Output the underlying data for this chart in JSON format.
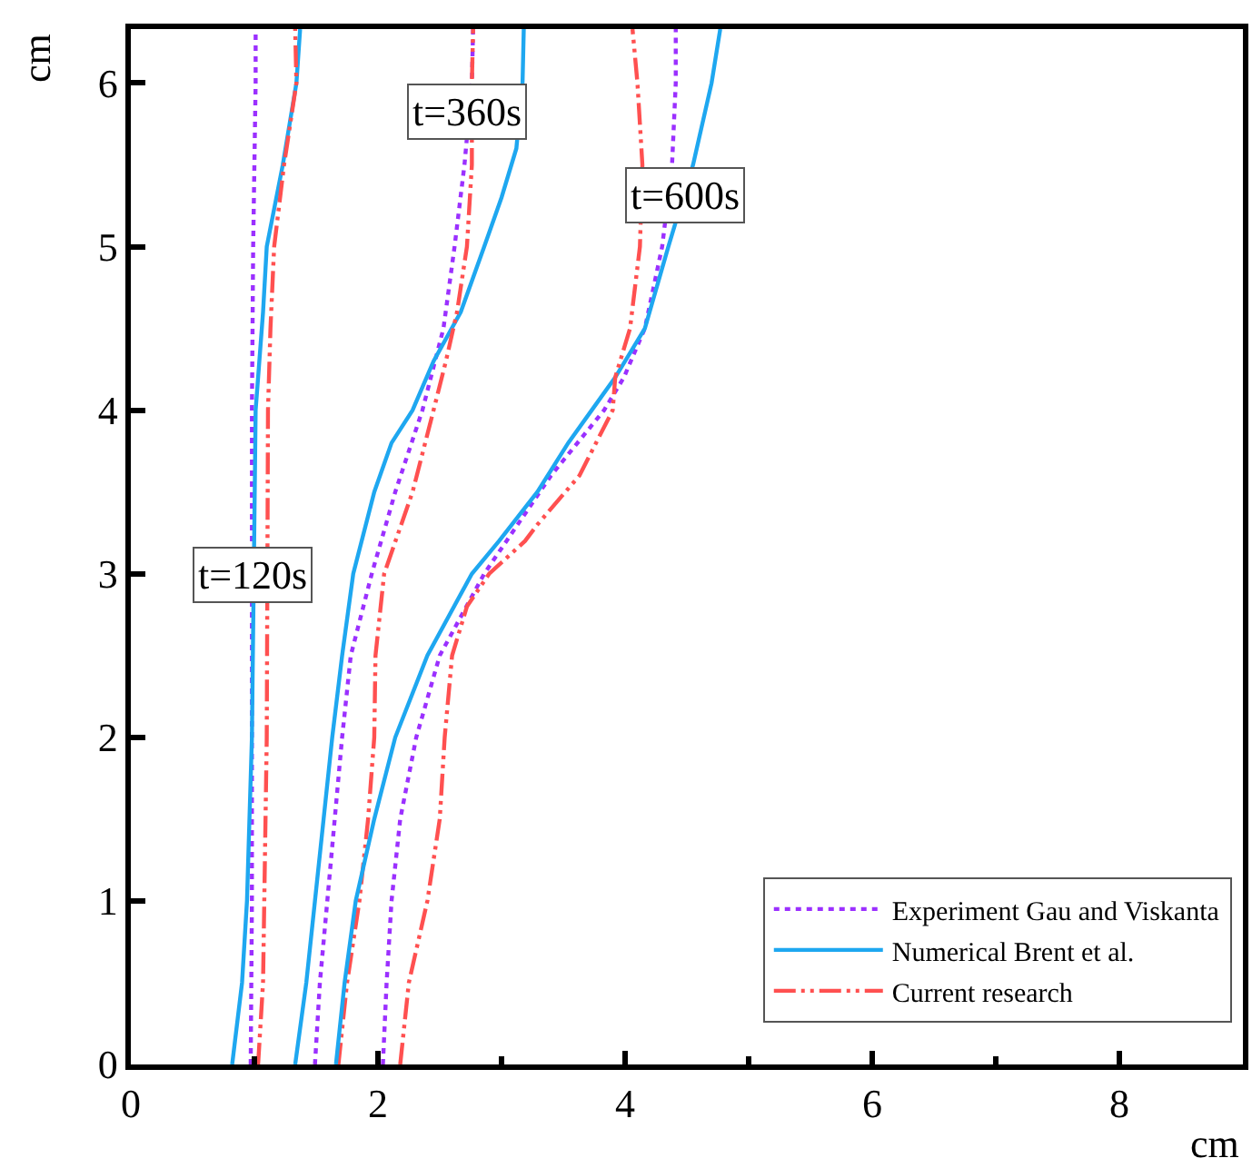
{
  "chart_data": {
    "type": "line",
    "xlabel": "cm",
    "ylabel": "cm",
    "xlim": [
      0,
      9
    ],
    "ylim": [
      0,
      6.33
    ],
    "xticks": [
      0,
      {
        "value": 1,
        "label": null
      },
      2,
      {
        "value": 3,
        "label": null
      },
      4,
      {
        "value": 5,
        "label": null
      },
      6,
      {
        "value": 7,
        "label": null
      },
      8
    ],
    "yticks": [
      0,
      1,
      2,
      3,
      4,
      5,
      6
    ],
    "legend": "bottom right",
    "marker": "none",
    "annotations": [
      {
        "text": "t=120s",
        "x": 0.98,
        "y": 2.99
      },
      {
        "text": "t=360s",
        "x": 2.72,
        "y": 5.82
      },
      {
        "text": "t=600s",
        "x": 4.49,
        "y": 5.31
      }
    ],
    "series": [
      {
        "name": "Experiment Gau and Viskanta",
        "color": "#9b30ff",
        "line_style": "dotted",
        "x": [
          0.97,
          0.98,
          0.98,
          0.98,
          0.99,
          1.0,
          1.01,
          1.01
        ],
        "values": [
          0,
          1,
          2,
          4,
          5,
          5.5,
          6,
          6.33
        ]
      },
      {
        "name": "Numerical Brent et al.",
        "color": "#1ea7f0",
        "line_style": "solid",
        "x": [
          0.82,
          0.9,
          0.94,
          0.98,
          1.01,
          1.07,
          1.1,
          1.23,
          1.34,
          1.37
        ],
        "values": [
          0,
          0.5,
          1,
          2,
          4,
          4.6,
          5,
          5.5,
          6,
          6.33
        ]
      },
      {
        "name": "Current research",
        "color": "#ff5050",
        "line_style": "dashed",
        "x": [
          1.03,
          1.07,
          1.08,
          1.1,
          1.11,
          1.13,
          1.16,
          1.24,
          1.34,
          1.33
        ],
        "values": [
          0,
          0.5,
          1,
          2,
          4,
          4.5,
          5,
          5.5,
          6,
          6.33
        ]
      },
      {
        "color": "#9b30ff",
        "line_style": "dotted",
        "x": [
          1.49,
          1.53,
          1.59,
          1.71,
          1.78,
          1.95,
          2.14,
          2.36,
          2.53,
          2.62,
          2.7,
          2.76,
          2.77
        ],
        "values": [
          0,
          0.5,
          1,
          2,
          2.5,
          3,
          3.5,
          4,
          4.5,
          5,
          5.5,
          6,
          6.33
        ]
      },
      {
        "color": "#1ea7f0",
        "line_style": "solid",
        "x": [
          1.33,
          1.42,
          1.49,
          1.56,
          1.63,
          1.71,
          1.8,
          1.97,
          2.11,
          2.28,
          2.45,
          2.67,
          2.86,
          3.0,
          3.12,
          3.17,
          3.18
        ],
        "values": [
          0,
          0.5,
          1,
          1.5,
          2,
          2.5,
          3,
          3.5,
          3.8,
          4,
          4.3,
          4.6,
          5,
          5.3,
          5.6,
          6,
          6.33
        ]
      },
      {
        "color": "#ff5050",
        "line_style": "dashed",
        "x": [
          1.68,
          1.75,
          1.85,
          1.92,
          1.97,
          1.98,
          2.05,
          2.28,
          2.45,
          2.55,
          2.64,
          2.72,
          2.76,
          2.76,
          2.77
        ],
        "values": [
          0,
          0.5,
          1,
          1.5,
          2,
          2.5,
          3,
          3.5,
          4,
          4.3,
          4.6,
          5,
          5.5,
          6,
          6.33
        ]
      },
      {
        "color": "#9b30ff",
        "line_style": "dotted",
        "x": [
          2.04,
          2.07,
          2.11,
          2.18,
          2.31,
          2.5,
          2.86,
          3.4,
          3.83,
          3.99,
          4.16,
          4.3,
          4.38,
          4.41,
          4.41
        ],
        "values": [
          0,
          0.5,
          1,
          1.5,
          2,
          2.5,
          3,
          3.6,
          4,
          4.2,
          4.5,
          5,
          5.5,
          6,
          6.33
        ]
      },
      {
        "color": "#1ea7f0",
        "line_style": "solid",
        "x": [
          1.66,
          1.73,
          1.82,
          1.97,
          2.14,
          2.4,
          2.76,
          2.98,
          3.29,
          3.54,
          3.73,
          3.92,
          4.16,
          4.35,
          4.55,
          4.7,
          4.77
        ],
        "values": [
          0,
          0.5,
          1,
          1.5,
          2,
          2.5,
          3,
          3.2,
          3.5,
          3.8,
          4,
          4.2,
          4.5,
          5,
          5.5,
          6,
          6.33
        ]
      },
      {
        "color": "#ff5050",
        "line_style": "dashed",
        "x": [
          2.18,
          2.25,
          2.4,
          2.5,
          2.54,
          2.6,
          2.72,
          2.9,
          3.19,
          3.29,
          3.63,
          3.9,
          3.92,
          4.04,
          4.12,
          4.14,
          4.1,
          4.06
        ],
        "values": [
          0,
          0.5,
          1,
          1.5,
          2,
          2.5,
          2.8,
          3,
          3.2,
          3.3,
          3.6,
          4,
          4.2,
          4.5,
          5,
          5.5,
          6,
          6.33
        ]
      }
    ]
  }
}
